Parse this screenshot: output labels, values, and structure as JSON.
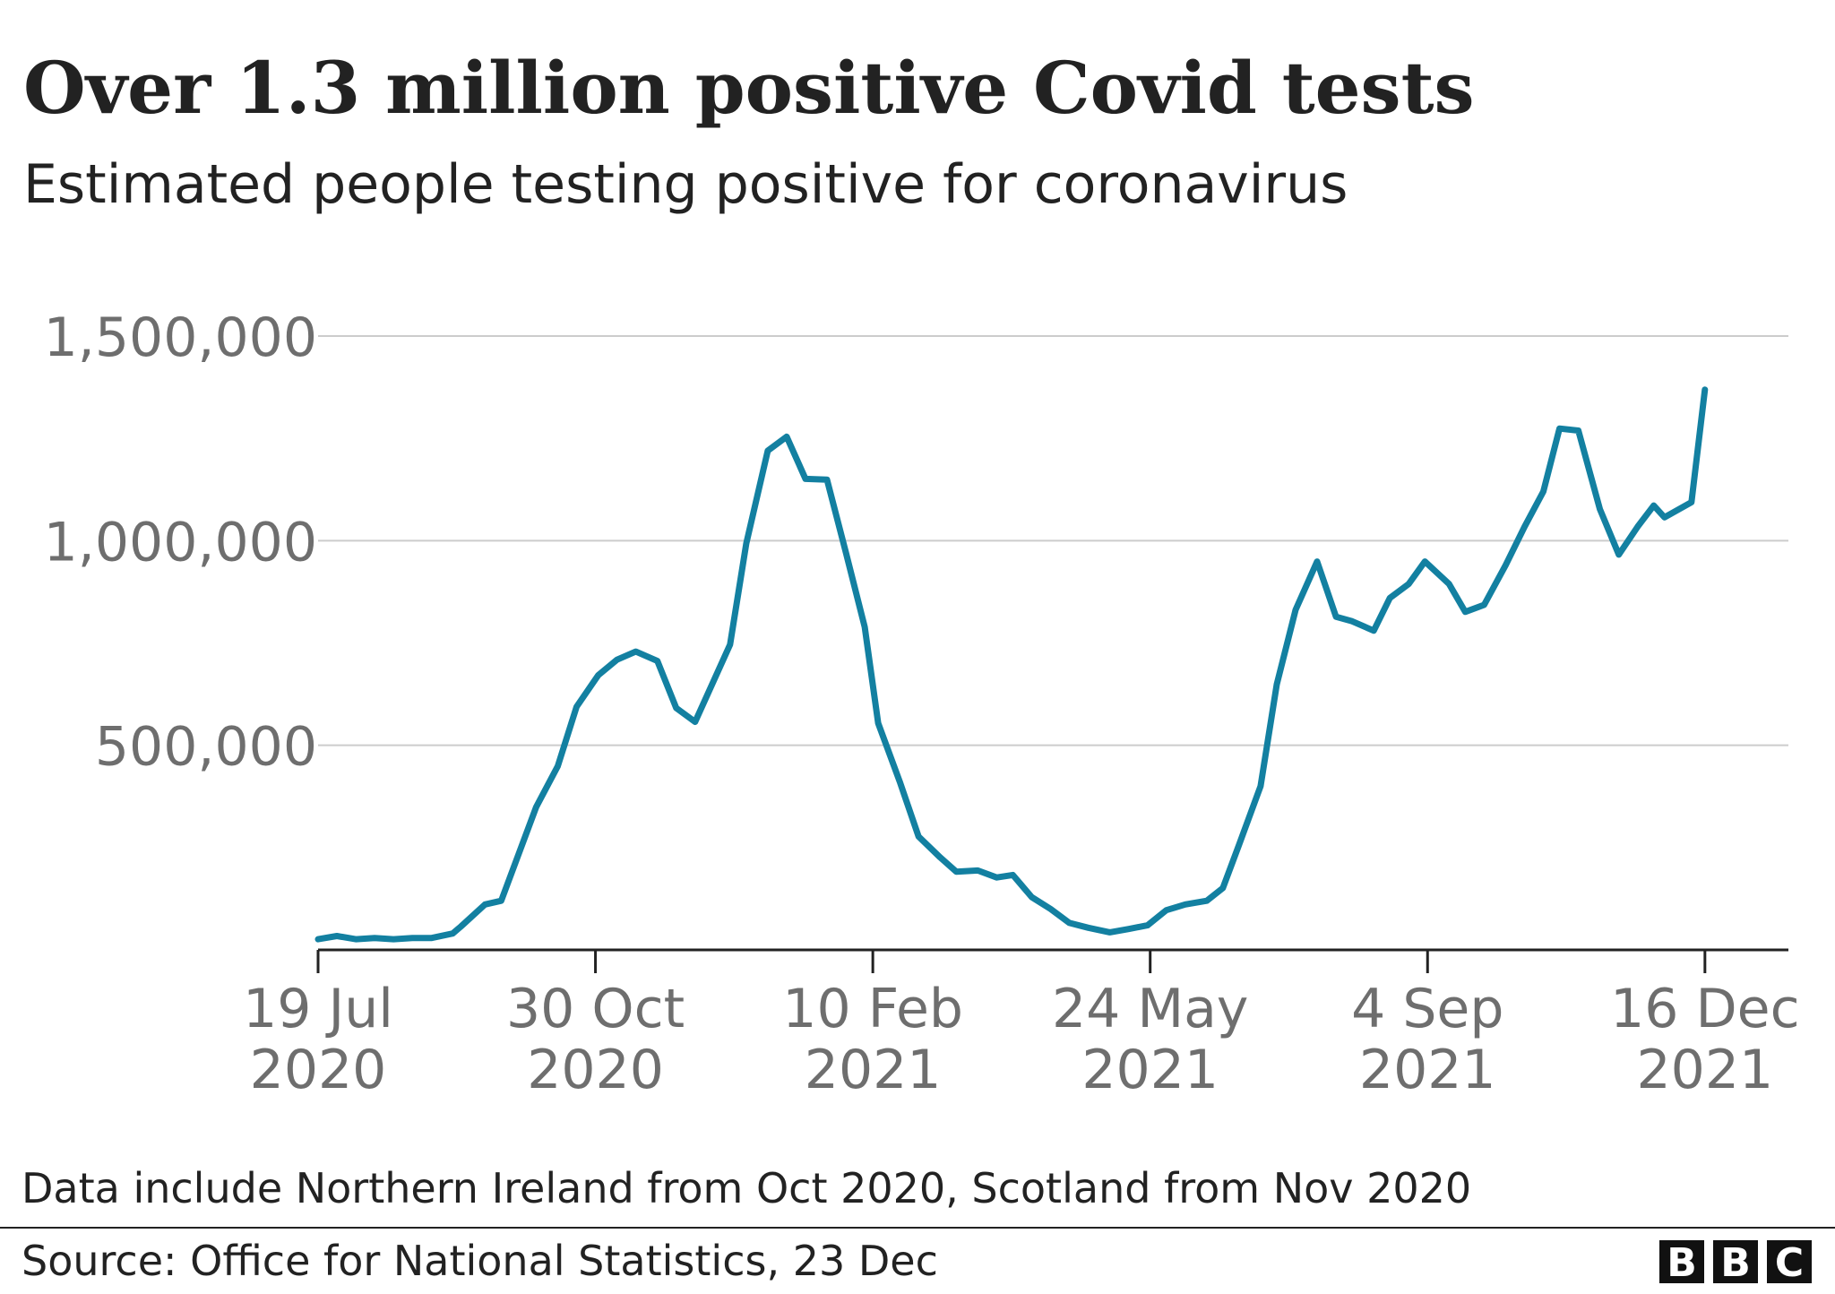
{
  "chart_data": {
    "type": "line",
    "title": "Over 1.3 million positive Covid tests",
    "subtitle": "Estimated people testing positive for coronavirus",
    "note": "Data include Northern Ireland from Oct 2020, Scotland from Nov 2020",
    "source": "Source: Office for National Statistics, 23 Dec",
    "logo": "BBC",
    "x": [
      "2020-07-19",
      "2020-07-26",
      "2020-08-02",
      "2020-08-09",
      "2020-08-16",
      "2020-08-23",
      "2020-08-30",
      "2020-09-07",
      "2020-09-10",
      "2020-09-19",
      "2020-09-25",
      "2020-10-08",
      "2020-10-16",
      "2020-10-23",
      "2020-10-31",
      "2020-11-07",
      "2020-11-14",
      "2020-11-22",
      "2020-11-29",
      "2020-12-06",
      "2020-12-19",
      "2020-12-25",
      "2021-01-02",
      "2021-01-09",
      "2021-01-16",
      "2021-01-24",
      "2021-01-31",
      "2021-02-07",
      "2021-02-12",
      "2021-02-20",
      "2021-02-27",
      "2021-03-07",
      "2021-03-13",
      "2021-03-21",
      "2021-03-28",
      "2021-04-03",
      "2021-04-10",
      "2021-04-17",
      "2021-04-24",
      "2021-05-01",
      "2021-05-09",
      "2021-05-16",
      "2021-05-23",
      "2021-05-30",
      "2021-06-06",
      "2021-06-14",
      "2021-06-20",
      "2021-06-26",
      "2021-07-04",
      "2021-07-10",
      "2021-07-17",
      "2021-07-25",
      "2021-08-01",
      "2021-08-07",
      "2021-08-15",
      "2021-08-21",
      "2021-08-28",
      "2021-09-03",
      "2021-09-12",
      "2021-09-18",
      "2021-09-25",
      "2021-10-03",
      "2021-10-10",
      "2021-10-17",
      "2021-10-23",
      "2021-10-30",
      "2021-11-07",
      "2021-11-14",
      "2021-11-21",
      "2021-11-27",
      "2021-12-01",
      "2021-12-11",
      "2021-12-16"
    ],
    "series": [
      {
        "name": "Estimated people testing positive",
        "color": "#1380a1",
        "values": [
          26000,
          34000,
          26000,
          29000,
          26000,
          29000,
          29000,
          40000,
          57000,
          111000,
          120000,
          349000,
          449000,
          594000,
          671000,
          709000,
          729000,
          706000,
          591000,
          557000,
          746000,
          993000,
          1220000,
          1254000,
          1151000,
          1149000,
          971000,
          789000,
          554000,
          411000,
          277000,
          226000,
          191000,
          194000,
          177000,
          183000,
          129000,
          100000,
          66000,
          54000,
          43000,
          51000,
          60000,
          97000,
          111000,
          120000,
          151000,
          257000,
          400000,
          649000,
          831000,
          949000,
          814000,
          803000,
          780000,
          860000,
          894000,
          949000,
          894000,
          826000,
          843000,
          940000,
          1034000,
          1120000,
          1274000,
          1269000,
          1077000,
          966000,
          1034000,
          1086000,
          1057000,
          1094000,
          1369000
        ]
      }
    ],
    "xlim": [
      "2020-07-19",
      "2022-01-16"
    ],
    "xticks": [
      {
        "value": "2020-07-19",
        "label": "19 Jul 2020"
      },
      {
        "value": "2020-10-30",
        "label": "30 Oct 2020"
      },
      {
        "value": "2021-02-10",
        "label": "10 Feb 2021"
      },
      {
        "value": "2021-05-24",
        "label": "24 May 2021"
      },
      {
        "value": "2021-09-04",
        "label": "4 Sep 2021"
      },
      {
        "value": "2021-12-16",
        "label": "16 Dec 2021"
      }
    ],
    "ylim": [
      0,
      1500000
    ],
    "yticks": [
      {
        "value": 500000,
        "label": "500,000"
      },
      {
        "value": 1000000,
        "label": "1,000,000"
      },
      {
        "value": 1500000,
        "label": "1,500,000"
      }
    ],
    "grid": true
  }
}
